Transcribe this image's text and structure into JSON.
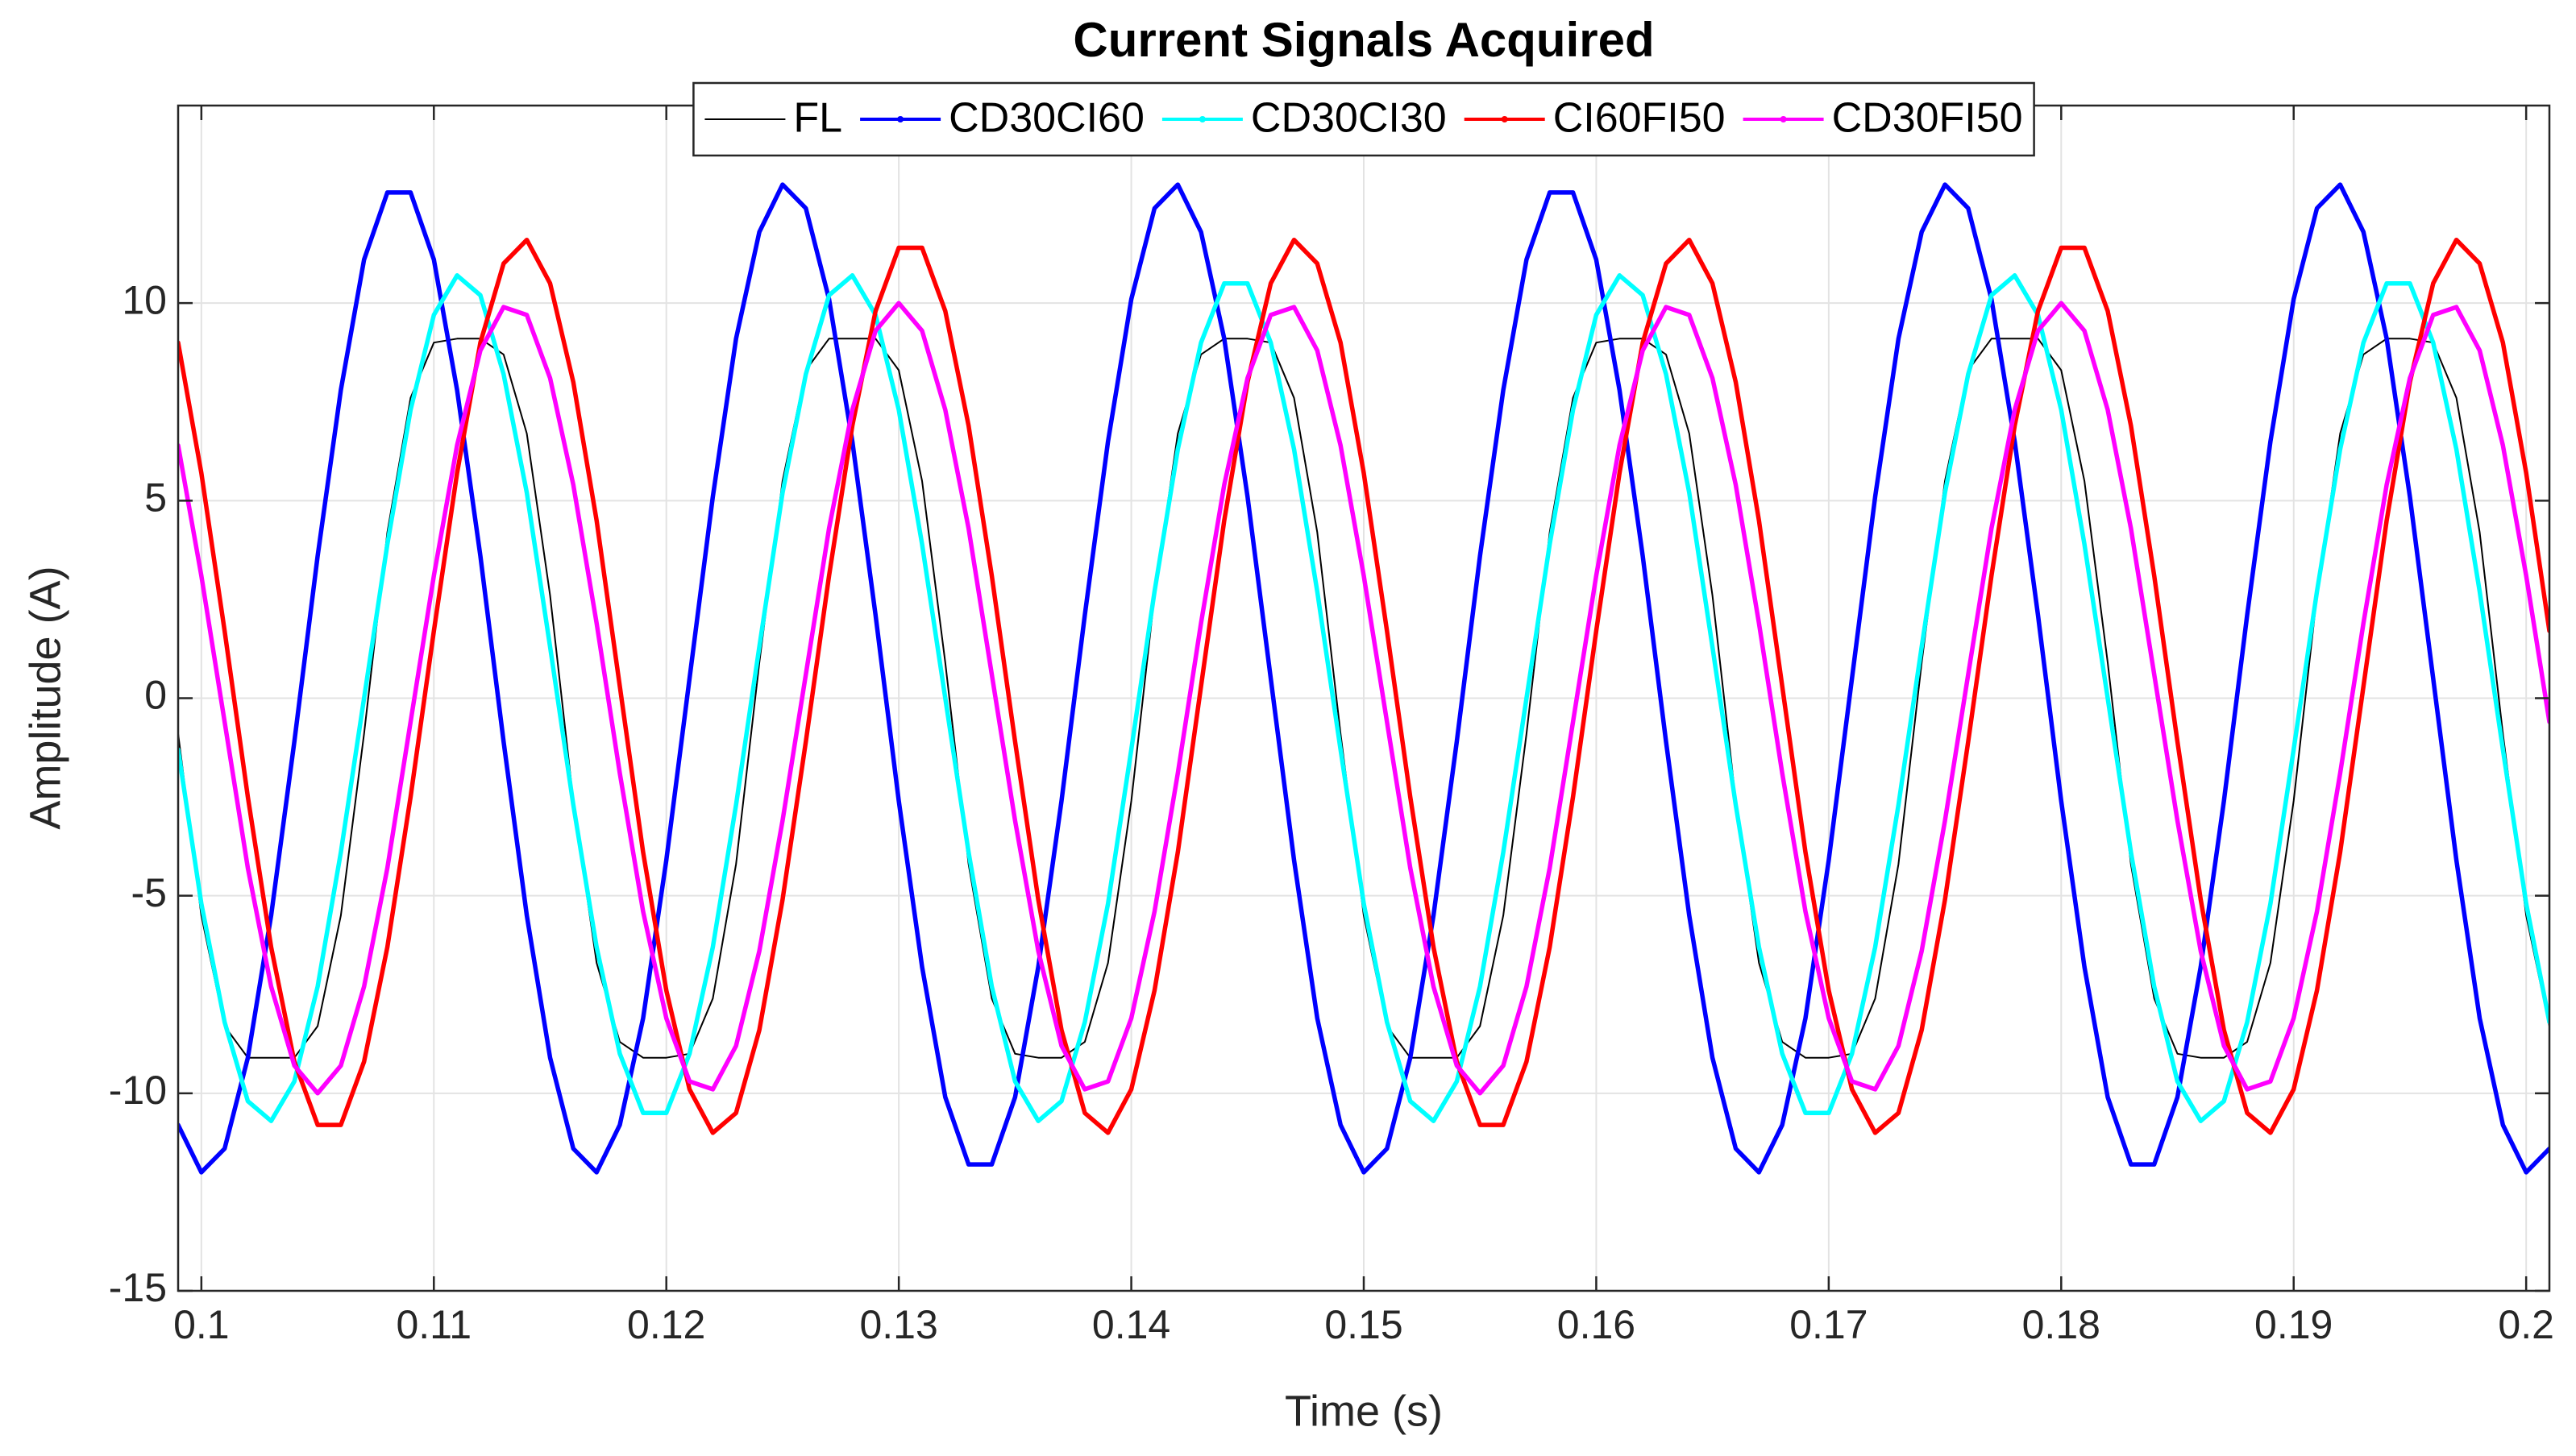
{
  "chart_data": {
    "type": "line",
    "title": "Current Signals Acquired",
    "xlabel": "Time (s)",
    "ylabel": "Amplitude (A)",
    "xlim": [
      0.099,
      0.201
    ],
    "ylim": [
      -15,
      15
    ],
    "xticks": [
      0.1,
      0.11,
      0.12,
      0.13,
      0.14,
      0.15,
      0.16,
      0.17,
      0.18,
      0.19,
      0.2
    ],
    "yticks": [
      -15,
      -10,
      -5,
      0,
      5,
      10
    ],
    "grid": true,
    "legend": "north",
    "x": [
      0.099,
      0.1,
      0.101,
      0.102,
      0.103,
      0.104,
      0.105,
      0.106,
      0.107,
      0.108,
      0.109,
      0.11,
      0.111,
      0.112,
      0.113,
      0.114,
      0.115,
      0.116,
      0.117,
      0.118,
      0.119,
      0.12,
      0.121,
      0.122,
      0.123,
      0.124,
      0.125,
      0.126,
      0.127,
      0.128,
      0.129,
      0.13,
      0.131,
      0.132,
      0.133,
      0.134,
      0.135,
      0.136,
      0.137,
      0.138,
      0.139,
      0.14,
      0.141,
      0.142,
      0.143,
      0.144,
      0.145,
      0.146,
      0.147,
      0.148,
      0.149,
      0.15,
      0.151,
      0.152,
      0.153,
      0.154,
      0.155,
      0.156,
      0.157,
      0.158,
      0.159,
      0.16,
      0.161,
      0.162,
      0.163,
      0.164,
      0.165,
      0.166,
      0.167,
      0.168,
      0.169,
      0.17,
      0.171,
      0.172,
      0.173,
      0.174,
      0.175,
      0.176,
      0.177,
      0.178,
      0.179,
      0.18,
      0.181,
      0.182,
      0.183,
      0.184,
      0.185,
      0.186,
      0.187,
      0.188,
      0.189,
      0.19,
      0.191,
      0.192,
      0.193,
      0.194,
      0.195,
      0.196,
      0.197,
      0.198,
      0.199,
      0.2,
      0.201
    ],
    "series": [
      {
        "name": "FL",
        "color": "#000000",
        "values": [
          -0.9,
          -5.5,
          -8.3,
          -9.1,
          -9.1,
          -9.1,
          -8.3,
          -5.5,
          -0.9,
          4.2,
          7.6,
          9.0,
          9.1,
          9.1,
          8.7,
          6.7,
          2.6,
          -2.6,
          -6.7,
          -8.7,
          -9.1,
          -9.1,
          -9.0,
          -7.6,
          -4.2,
          0.9,
          5.5,
          8.3,
          9.1,
          9.1,
          9.1,
          8.3,
          5.5,
          0.9,
          -4.2,
          -7.6,
          -9.0,
          -9.1,
          -9.1,
          -8.7,
          -6.7,
          -2.6,
          2.6,
          6.7,
          8.7,
          9.1,
          9.1,
          9.0,
          7.6,
          4.2,
          -0.9,
          -5.5,
          -8.3,
          -9.1,
          -9.1,
          -9.1,
          -8.3,
          -5.5,
          -0.9,
          4.2,
          7.6,
          9.0,
          9.1,
          9.1,
          8.7,
          6.7,
          2.6,
          -2.6,
          -6.7,
          -8.7,
          -9.1,
          -9.1,
          -9.0,
          -7.6,
          -4.2,
          0.9,
          5.5,
          8.3,
          9.1,
          9.1,
          9.1,
          8.3,
          5.5,
          0.9,
          -4.2,
          -7.6,
          -9.0,
          -9.1,
          -9.1,
          -8.7,
          -6.7,
          -2.6,
          2.6,
          6.7,
          8.7,
          9.1,
          9.1,
          9.0,
          7.6,
          4.2,
          -0.9,
          -5.5,
          -8.3
        ]
      },
      {
        "name": "CD30CI60",
        "color": "#0000ff",
        "values": [
          -10.8,
          -12.0,
          -11.4,
          -9.1,
          -5.5,
          -1.1,
          3.6,
          7.8,
          11.1,
          12.8,
          12.8,
          11.1,
          7.8,
          3.6,
          -1.1,
          -5.5,
          -9.1,
          -11.4,
          -12.0,
          -10.8,
          -8.1,
          -4.1,
          0.5,
          5.1,
          9.1,
          11.8,
          13.0,
          12.4,
          10.1,
          6.5,
          2.1,
          -2.6,
          -6.8,
          -10.1,
          -11.8,
          -11.8,
          -10.1,
          -6.8,
          -2.6,
          2.1,
          6.5,
          10.1,
          12.4,
          13.0,
          11.8,
          9.1,
          5.1,
          0.5,
          -4.1,
          -8.1,
          -10.8,
          -12.0,
          -11.4,
          -9.1,
          -5.5,
          -1.1,
          3.6,
          7.8,
          11.1,
          12.8,
          12.8,
          11.1,
          7.8,
          3.6,
          -1.1,
          -5.5,
          -9.1,
          -11.4,
          -12.0,
          -10.8,
          -8.1,
          -4.1,
          0.5,
          5.1,
          9.1,
          11.8,
          13.0,
          12.4,
          10.1,
          6.5,
          2.1,
          -2.6,
          -6.8,
          -10.1,
          -11.8,
          -11.8,
          -10.1,
          -6.8,
          -2.6,
          2.1,
          6.5,
          10.1,
          12.4,
          13.0,
          11.8,
          9.1,
          5.1,
          0.5,
          -4.1,
          -8.1,
          -10.8,
          -12.0,
          -11.4
        ]
      },
      {
        "name": "CD30CI30",
        "color": "#00ffff",
        "values": [
          -1.3,
          -5.2,
          -8.2,
          -10.2,
          -10.7,
          -9.7,
          -7.3,
          -3.9,
          0,
          3.9,
          7.3,
          9.7,
          10.7,
          10.2,
          8.2,
          5.2,
          1.3,
          -2.7,
          -6.3,
          -9.0,
          -10.5,
          -10.5,
          -9.0,
          -6.3,
          -2.7,
          1.3,
          5.2,
          8.2,
          10.2,
          10.7,
          9.7,
          7.3,
          3.9,
          0,
          -3.9,
          -7.3,
          -9.7,
          -10.7,
          -10.2,
          -8.2,
          -5.2,
          -1.3,
          2.7,
          6.3,
          9.0,
          10.5,
          10.5,
          9.0,
          6.3,
          2.7,
          -1.3,
          -5.2,
          -8.2,
          -10.2,
          -10.7,
          -9.7,
          -7.3,
          -3.9,
          0,
          3.9,
          7.3,
          9.7,
          10.7,
          10.2,
          8.2,
          5.2,
          1.3,
          -2.7,
          -6.3,
          -9.0,
          -10.5,
          -10.5,
          -9.0,
          -6.3,
          -2.7,
          1.3,
          5.2,
          8.2,
          10.2,
          10.7,
          9.7,
          7.3,
          3.9,
          0,
          -3.9,
          -7.3,
          -9.7,
          -10.7,
          -10.2,
          -8.2,
          -5.2,
          -1.3,
          2.7,
          6.3,
          9.0,
          10.5,
          10.5,
          9.0,
          6.3,
          2.7,
          -1.3,
          -5.2,
          -8.2
        ]
      },
      {
        "name": "CI60FI50",
        "color": "#ff0000",
        "values": [
          9.0,
          5.7,
          1.7,
          -2.5,
          -6.3,
          -9.2,
          -10.8,
          -10.8,
          -9.2,
          -6.3,
          -2.5,
          1.7,
          5.7,
          9.0,
          11.0,
          11.6,
          10.5,
          8.0,
          4.5,
          0.3,
          -3.9,
          -7.4,
          -9.9,
          -11.0,
          -10.5,
          -8.4,
          -5.1,
          -1.1,
          3.1,
          6.9,
          9.8,
          11.4,
          11.4,
          9.8,
          6.9,
          3.1,
          -1.1,
          -5.1,
          -8.4,
          -10.5,
          -11.0,
          -9.9,
          -7.4,
          -3.9,
          0.3,
          4.5,
          8.0,
          10.5,
          11.6,
          11.0,
          9.0,
          5.7,
          1.7,
          -2.5,
          -6.3,
          -9.2,
          -10.8,
          -10.8,
          -9.2,
          -6.3,
          -2.5,
          1.7,
          5.7,
          9.0,
          11.0,
          11.6,
          10.5,
          8.0,
          4.5,
          0.3,
          -3.9,
          -7.4,
          -9.9,
          -11.0,
          -10.5,
          -8.4,
          -5.1,
          -1.1,
          3.1,
          6.9,
          9.8,
          11.4,
          11.4,
          9.8,
          6.9,
          3.1,
          -1.1,
          -5.1,
          -8.4,
          -10.5,
          -11.0,
          -9.9,
          -7.4,
          -3.9,
          0.3,
          4.5,
          8.0,
          10.5,
          11.6,
          11.0,
          9.0,
          5.7,
          1.7
        ]
      },
      {
        "name": "CD30FI50",
        "color": "#ff00ff",
        "values": [
          6.4,
          3.1,
          -0.6,
          -4.3,
          -7.3,
          -9.3,
          -10,
          -9.3,
          -7.3,
          -4.3,
          -0.6,
          3.1,
          6.4,
          8.8,
          9.9,
          9.7,
          8.1,
          5.4,
          1.9,
          -1.9,
          -5.4,
          -8.1,
          -9.7,
          -9.9,
          -8.8,
          -6.4,
          -3.1,
          0.6,
          4.3,
          7.3,
          9.3,
          10,
          9.3,
          7.3,
          4.3,
          0.6,
          -3.1,
          -6.4,
          -8.8,
          -9.9,
          -9.7,
          -8.1,
          -5.4,
          -1.9,
          1.9,
          5.4,
          8.1,
          9.7,
          9.9,
          8.8,
          6.4,
          3.1,
          -0.6,
          -4.3,
          -7.3,
          -9.3,
          -10,
          -9.3,
          -7.3,
          -4.3,
          -0.6,
          3.1,
          6.4,
          8.8,
          9.9,
          9.7,
          8.1,
          5.4,
          1.9,
          -1.9,
          -5.4,
          -8.1,
          -9.7,
          -9.9,
          -8.8,
          -6.4,
          -3.1,
          0.6,
          4.3,
          7.3,
          9.3,
          10,
          9.3,
          7.3,
          4.3,
          0.6,
          -3.1,
          -6.4,
          -8.8,
          -9.9,
          -9.7,
          -8.1,
          -5.4,
          -1.9,
          1.9,
          5.4,
          8.1,
          9.7,
          9.9,
          8.8,
          6.4,
          3.1,
          -0.6
        ]
      }
    ]
  }
}
